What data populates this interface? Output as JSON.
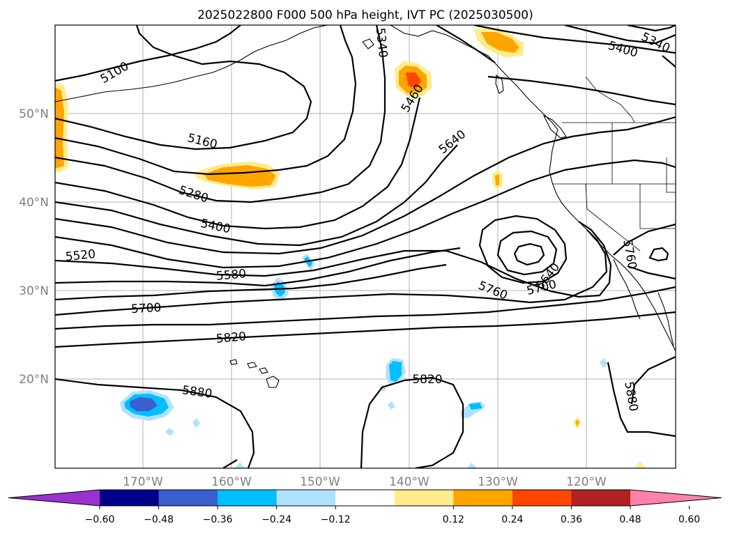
{
  "title": "2025022800 F000 500 hPa height, IVT PC (2025030500)",
  "map": {
    "lat_labels": [
      "50°N",
      "40°N",
      "30°N",
      "20°N"
    ],
    "lon_labels": [
      "170°W",
      "160°W",
      "150°W",
      "140°W",
      "130°W",
      "120°W"
    ],
    "gridlines": true
  },
  "contour_labels": [
    "5100",
    "5160",
    "5280",
    "5400",
    "5520",
    "5580",
    "5700",
    "5820",
    "5880",
    "5340",
    "5460",
    "5640",
    "5760",
    "5700",
    "5640",
    "5820",
    "5880",
    "5400",
    "5340",
    "5760"
  ],
  "colorbar": {
    "ticks": [
      "−0.60",
      "−0.48",
      "−0.36",
      "−0.24",
      "−0.12",
      "0.12",
      "0.24",
      "0.36",
      "0.48",
      "0.60"
    ],
    "colors": [
      "#9a32cd",
      "#00008b",
      "#3a5fcd",
      "#00bfff",
      "#b0e2ff",
      "#ffffff",
      "#ffec8b",
      "#ffa500",
      "#ff4500",
      "#b22222",
      "#ff82ab"
    ],
    "extend": "both"
  }
}
